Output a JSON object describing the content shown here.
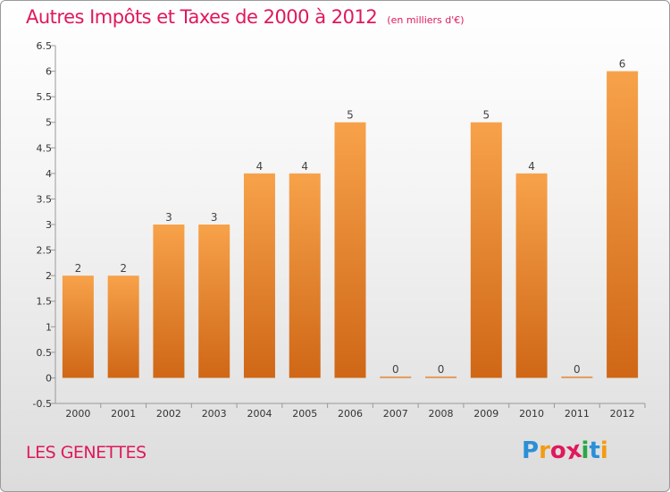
{
  "chart_data": {
    "type": "bar",
    "title": "Autres Impôts et Taxes de 2000 à 2012",
    "subtitle": "(en milliers d'€)",
    "categories": [
      "2000",
      "2001",
      "2002",
      "2003",
      "2004",
      "2005",
      "2006",
      "2007",
      "2008",
      "2009",
      "2010",
      "2011",
      "2012"
    ],
    "values": [
      2,
      2,
      3,
      3,
      4,
      4,
      5,
      0,
      0,
      5,
      4,
      0,
      6
    ],
    "data_labels": [
      "2",
      "2",
      "3",
      "3",
      "4",
      "4",
      "5",
      "0",
      "0",
      "5",
      "4",
      "0",
      "6"
    ],
    "y_ticks": [
      "-0.5",
      "0",
      "0.5",
      "1",
      "1.5",
      "2",
      "2.5",
      "3",
      "3.5",
      "4",
      "4.5",
      "5",
      "5.5",
      "6",
      "6.5"
    ],
    "ylim": [
      -0.5,
      6.5
    ],
    "grid": false,
    "bar_color": "#f08a2c"
  },
  "footer": {
    "commune": "LES GENETTES",
    "logo_letters": [
      "P",
      "r",
      "o",
      "x",
      "i",
      "t",
      "i"
    ],
    "logo_colors": [
      "#2b8fd6",
      "#f39c12",
      "#e0185c",
      "#e0185c",
      "#27a844",
      "#2b8fd6",
      "#f39c12"
    ]
  },
  "colors": {
    "accent": "#e0185c"
  }
}
